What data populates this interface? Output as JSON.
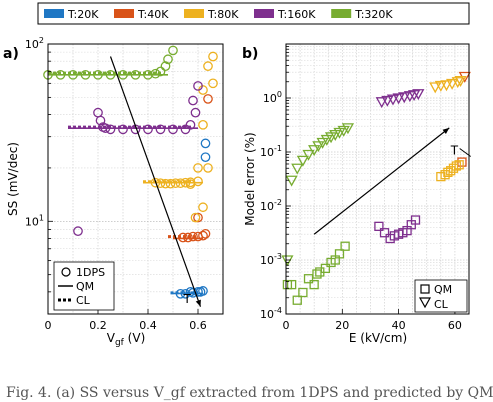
{
  "legend_top": [
    {
      "label": "T:20K",
      "color": "#1f77c4"
    },
    {
      "label": "T:40K",
      "color": "#d95319"
    },
    {
      "label": "T:80K",
      "color": "#edb120"
    },
    {
      "label": "T:160K",
      "color": "#7e2f8e"
    },
    {
      "label": "T:320K",
      "color": "#77ac30"
    }
  ],
  "caption": "Fig. 4.  (a) SS versus V_gf extracted from 1DPS and predicted by QM",
  "chart_data": [
    {
      "panel": "a)",
      "type": "scatter",
      "xlabel": "V_gf (V)",
      "ylabel": "SS (mV/dec)",
      "xlim": [
        0,
        0.7
      ],
      "ylim": [
        3,
        100
      ],
      "yscale": "log",
      "grid": true,
      "xticks": [
        "0",
        "0.2",
        "0.4",
        "0.6"
      ],
      "yticks": [
        "10^1",
        "10^2"
      ],
      "legend": {
        "position": "bottom-left",
        "entries": [
          {
            "label": "1DPS",
            "marker": "circle"
          },
          {
            "label": "QM",
            "marker": "solid-line"
          },
          {
            "label": "CL",
            "marker": "dashed-line"
          }
        ]
      },
      "series": [
        {
          "name": "T:20K",
          "color": "#1f77c4",
          "points_1dps": [
            [
              0.53,
              3.9
            ],
            [
              0.55,
              3.9
            ],
            [
              0.57,
              4.0
            ],
            [
              0.58,
              3.95
            ],
            [
              0.6,
              4.0
            ],
            [
              0.61,
              4.0
            ],
            [
              0.62,
              4.05
            ],
            [
              0.63,
              23
            ],
            [
              0.63,
              27.5
            ]
          ],
          "qm": [
            [
              0.5,
              3.92
            ],
            [
              0.62,
              3.92
            ]
          ],
          "cl": [
            [
              0.49,
              3.95
            ],
            [
              0.6,
              3.95
            ]
          ]
        },
        {
          "name": "T:40K",
          "color": "#d95319",
          "points_1dps": [
            [
              0.54,
              8.1
            ],
            [
              0.56,
              8.1
            ],
            [
              0.58,
              8.2
            ],
            [
              0.6,
              8.2
            ],
            [
              0.62,
              8.3
            ],
            [
              0.63,
              8.5
            ],
            [
              0.6,
              10.5
            ],
            [
              0.64,
              49
            ]
          ],
          "qm": [
            [
              0.5,
              8.0
            ],
            [
              0.62,
              8.0
            ]
          ],
          "cl": [
            [
              0.48,
              8.2
            ],
            [
              0.6,
              8.2
            ]
          ]
        },
        {
          "name": "T:80K",
          "color": "#edb120",
          "points_1dps": [
            [
              0.43,
              16.5
            ],
            [
              0.45,
              16.4
            ],
            [
              0.47,
              16.3
            ],
            [
              0.49,
              16.3
            ],
            [
              0.51,
              16.4
            ],
            [
              0.53,
              16.4
            ],
            [
              0.55,
              16.5
            ],
            [
              0.57,
              16.6
            ],
            [
              0.6,
              20
            ],
            [
              0.62,
              35
            ],
            [
              0.62,
              55
            ],
            [
              0.66,
              60
            ],
            [
              0.64,
              75
            ],
            [
              0.66,
              85
            ],
            [
              0.64,
              20
            ],
            [
              0.62,
              12
            ],
            [
              0.59,
              10.5
            ],
            [
              0.57,
              16.2
            ],
            [
              0.6,
              16.8
            ]
          ],
          "qm": [
            [
              0.38,
              16.5
            ],
            [
              0.62,
              16.5
            ]
          ],
          "cl": [
            [
              0.38,
              16.7
            ],
            [
              0.58,
              16.7
            ]
          ]
        },
        {
          "name": "T:160K",
          "color": "#7e2f8e",
          "points_1dps": [
            [
              0.2,
              41
            ],
            [
              0.21,
              37
            ],
            [
              0.22,
              34
            ],
            [
              0.23,
              33.5
            ],
            [
              0.25,
              33
            ],
            [
              0.3,
              33
            ],
            [
              0.35,
              33
            ],
            [
              0.4,
              33
            ],
            [
              0.45,
              33
            ],
            [
              0.5,
              33
            ],
            [
              0.55,
              33
            ],
            [
              0.57,
              35
            ],
            [
              0.58,
              48
            ],
            [
              0.6,
              58
            ],
            [
              0.59,
              41
            ],
            [
              0.12,
              8.8
            ]
          ],
          "qm": [
            [
              0.08,
              33.5
            ],
            [
              0.6,
              33.5
            ]
          ],
          "cl": [
            [
              0.08,
              34
            ],
            [
              0.58,
              34
            ]
          ]
        },
        {
          "name": "T:320K",
          "color": "#77ac30",
          "points_1dps": [
            [
              0.0,
              67
            ],
            [
              0.05,
              67
            ],
            [
              0.1,
              67
            ],
            [
              0.15,
              67
            ],
            [
              0.2,
              67
            ],
            [
              0.25,
              67
            ],
            [
              0.3,
              67
            ],
            [
              0.35,
              67
            ],
            [
              0.4,
              67
            ],
            [
              0.43,
              68
            ],
            [
              0.45,
              70
            ],
            [
              0.47,
              75
            ],
            [
              0.48,
              82
            ],
            [
              0.5,
              92
            ]
          ],
          "qm": [
            [
              0.0,
              67
            ],
            [
              0.48,
              67
            ]
          ],
          "cl": [
            [
              0.0,
              68.5
            ],
            [
              0.46,
              68.5
            ]
          ]
        }
      ],
      "annotations": [
        {
          "text": "T",
          "arrow": {
            "from": [
              0.25,
              85
            ],
            "to": [
              0.61,
              3.3
            ]
          },
          "label_at": [
            0.59,
            3.7
          ]
        }
      ]
    },
    {
      "panel": "b)",
      "type": "scatter",
      "xlabel": "E (kV/cm)",
      "ylabel": "Model error (%)",
      "xlim": [
        0,
        65
      ],
      "ylim": [
        0.0001,
        10
      ],
      "yscale": "log",
      "grid": true,
      "xticks": [
        "0",
        "20",
        "40",
        "60"
      ],
      "yticks": [
        "10^-4",
        "10^-3",
        "10^-2",
        "10^-1",
        "10^0"
      ],
      "legend": {
        "position": "bottom-right",
        "entries": [
          {
            "label": "QM",
            "marker": "square"
          },
          {
            "label": "CL",
            "marker": "triangle-down"
          }
        ]
      },
      "series": [
        {
          "name": "T:20K",
          "color": "#1f77c4",
          "qm": [],
          "cl": []
        },
        {
          "name": "T:40K",
          "color": "#d95319",
          "qm": [
            [
              62.5,
              0.065
            ]
          ],
          "cl": [
            [
              63.5,
              2.5
            ]
          ]
        },
        {
          "name": "T:80K",
          "color": "#edb120",
          "qm": [
            [
              55,
              0.035
            ],
            [
              56.5,
              0.038
            ],
            [
              57.5,
              0.042
            ],
            [
              58.5,
              0.045
            ],
            [
              59.5,
              0.05
            ],
            [
              60.5,
              0.055
            ],
            [
              61.5,
              0.058
            ]
          ],
          "cl": [
            [
              53,
              1.6
            ],
            [
              55,
              1.7
            ],
            [
              57,
              1.75
            ],
            [
              59,
              1.85
            ],
            [
              61,
              2.0
            ],
            [
              62,
              2.1
            ]
          ]
        },
        {
          "name": "T:160K",
          "color": "#7e2f8e",
          "qm": [
            [
              33,
              0.0042
            ],
            [
              35,
              0.0032
            ],
            [
              37,
              0.0025
            ],
            [
              38.5,
              0.0028
            ],
            [
              40,
              0.003
            ],
            [
              41.5,
              0.0032
            ],
            [
              43,
              0.0035
            ],
            [
              44.5,
              0.0045
            ],
            [
              46,
              0.0055
            ]
          ],
          "cl": [
            [
              34,
              0.85
            ],
            [
              36,
              0.9
            ],
            [
              38,
              0.95
            ],
            [
              40,
              1.0
            ],
            [
              42,
              1.05
            ],
            [
              44,
              1.1
            ],
            [
              45.5,
              1.15
            ],
            [
              47,
              1.2
            ]
          ]
        },
        {
          "name": "T:320K",
          "color": "#77ac30",
          "qm": [
            [
              0.5,
              0.00035
            ],
            [
              2,
              0.00035
            ],
            [
              4,
              0.00018
            ],
            [
              6,
              0.00025
            ],
            [
              8,
              0.00045
            ],
            [
              10,
              0.00035
            ],
            [
              11,
              0.00055
            ],
            [
              12,
              0.0006
            ],
            [
              14,
              0.0007
            ],
            [
              16,
              0.0009
            ],
            [
              17.5,
              0.001
            ],
            [
              19,
              0.0013
            ],
            [
              21,
              0.0018
            ]
          ],
          "cl": [
            [
              0.5,
              0.001
            ],
            [
              2,
              0.03
            ],
            [
              4,
              0.05
            ],
            [
              6,
              0.07
            ],
            [
              8,
              0.09
            ],
            [
              10,
              0.11
            ],
            [
              11.5,
              0.13
            ],
            [
              13,
              0.15
            ],
            [
              14.5,
              0.17
            ],
            [
              16,
              0.19
            ],
            [
              17.5,
              0.21
            ],
            [
              19,
              0.23
            ],
            [
              20.5,
              0.25
            ],
            [
              22,
              0.28
            ]
          ]
        }
      ],
      "annotations": [
        {
          "text": "T",
          "arrow": {
            "from": [
              10,
              0.003
            ],
            "to": [
              58,
              0.28
            ]
          },
          "label_at": [
            58.5,
            0.09
          ]
        }
      ]
    }
  ]
}
